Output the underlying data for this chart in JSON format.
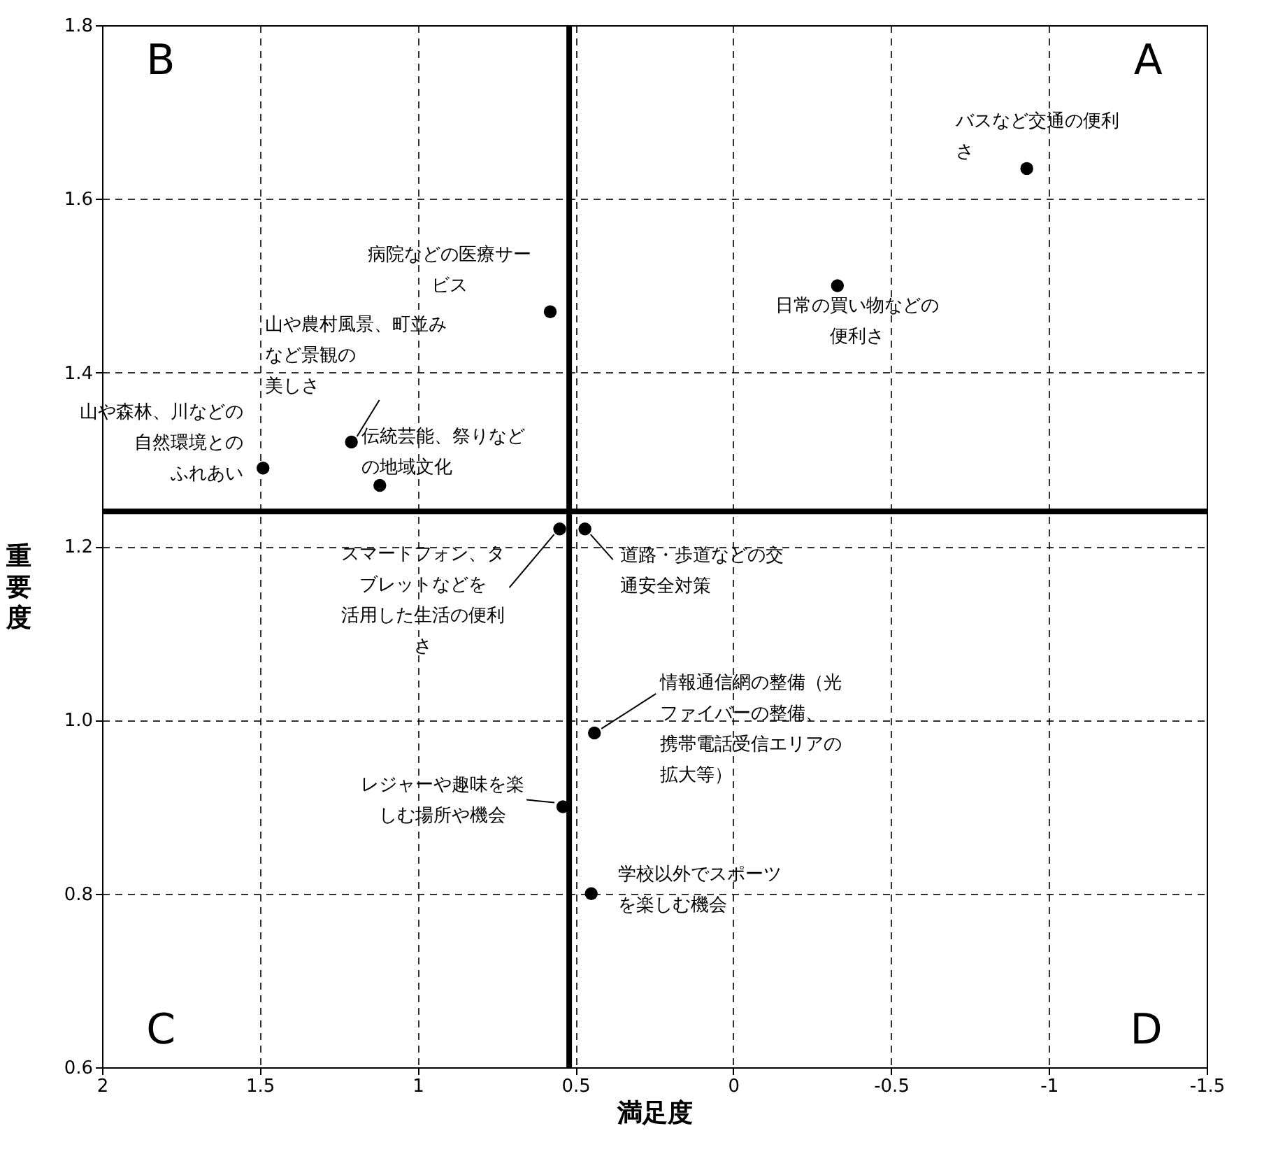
{
  "chart_data": {
    "type": "scatter",
    "xlabel": "満足度",
    "ylabel": "重要度",
    "x": [
      -0.93,
      -0.33,
      0.58,
      1.21,
      1.49,
      1.12,
      0.55,
      0.47,
      0.44,
      0.54,
      0.45
    ],
    "series": [
      {
        "color": "#000000",
        "values": [
          1.635,
          1.5,
          1.47,
          1.32,
          1.29,
          1.27,
          1.22,
          1.22,
          0.985,
          0.9,
          0.8
        ]
      }
    ],
    "xlim": [
      2,
      -1.5
    ],
    "xticks": [
      2,
      1.5,
      1,
      0.5,
      0,
      -0.5,
      -1,
      -1.5
    ],
    "ylim": [
      0.6,
      1.8
    ],
    "yticks": [
      0.6,
      0.8,
      {
        "value": 1,
        "label": "1.0"
      },
      1.2,
      1.4,
      1.6,
      1.8
    ],
    "grid": true,
    "marker": "circle",
    "ref_lines": [
      {
        "axis": "x",
        "value": 0.52
      },
      {
        "axis": "y",
        "value": 1.24
      }
    ],
    "annotations": [
      "B",
      "A",
      "C",
      "D",
      {
        "text": "バスなど交通の便利さ",
        "x": -0.93,
        "y": 1.635
      },
      {
        "text": "日常の買い物などの便利さ",
        "x": -0.33,
        "y": 1.5
      },
      {
        "text": "病院などの医療サービス",
        "x": 0.58,
        "y": 1.47
      },
      {
        "text": "山や農村風景、町並みなど景観の美しさ",
        "x": 1.21,
        "y": 1.32
      },
      {
        "text": "山や森林、川などの自然環境とのふれあい",
        "x": 1.49,
        "y": 1.29
      },
      {
        "text": "伝統芸能、祭りなどの地域文化",
        "x": 1.12,
        "y": 1.27
      },
      {
        "text": "スマートフォン、タブレットなどを活用した生活の便利さ",
        "x": 0.55,
        "y": 1.22
      },
      {
        "text": "道路・歩道などの交通安全対策",
        "x": 0.47,
        "y": 1.22
      },
      {
        "text": "情報通信網の整備（光ファイバーの整備、携帯電話受信エリアの拡大等）",
        "x": 0.44,
        "y": 0.985
      },
      {
        "text": "レジャーや趣味を楽しむ場所や機会",
        "x": 0.54,
        "y": 0.9
      },
      {
        "text": "学校以外でスポーツを楽しむ機会",
        "x": 0.45,
        "y": 0.8
      }
    ]
  }
}
